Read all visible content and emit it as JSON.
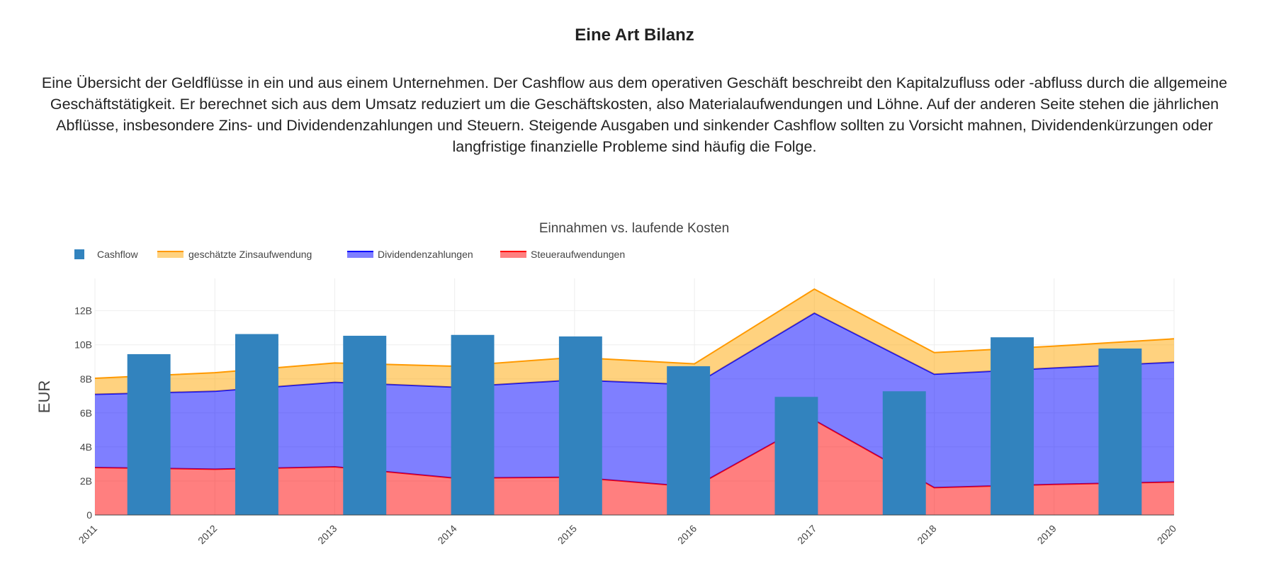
{
  "header": {
    "title": "Eine Art Bilanz",
    "description": "Eine Übersicht der Geldflüsse in ein und aus einem Unternehmen. Der Cashflow aus dem operativen Geschäft beschreibt den Kapitalzufluss oder -abfluss durch die allgemeine Geschäftstätigkeit. Er berechnet sich aus dem Umsatz reduziert um die Geschäftskosten, also Materialaufwendungen und Löhne. Auf der anderen Seite stehen die jährlichen Abflüsse, insbesondere Zins- und Dividendenzahlungen und Steuern. Steigende Ausgaben und sinkender Cashflow sollten zu Vorsicht mahnen, Dividendenkürzungen oder langfristige finanzielle Probleme sind häufig die Folge."
  },
  "chart_data": {
    "type": "bar+stacked-area",
    "title": "Einnahmen vs. laufende Kosten",
    "xlabel": "",
    "ylabel": "EUR",
    "x": [
      "2011",
      "2012",
      "2013",
      "2014",
      "2015",
      "2016",
      "2017",
      "2018",
      "2019",
      "2020"
    ],
    "x_tick_labels": [
      "2011",
      "2012",
      "2013",
      "2014",
      "2015",
      "2016",
      "2017",
      "2018",
      "2019",
      "2020"
    ],
    "y_tick_labels": [
      "0",
      "2B",
      "4B",
      "6B",
      "8B",
      "10B",
      "12B"
    ],
    "y_ticks": [
      0,
      2,
      4,
      6,
      8,
      10,
      12
    ],
    "ylim": [
      0,
      13.9
    ],
    "y_unit": "B EUR",
    "grid": true,
    "legend_placement": "top-left",
    "bars": {
      "name": "Cashflow",
      "color": "#3283BE",
      "values": [
        9.45,
        10.63,
        10.53,
        10.58,
        10.49,
        8.74,
        6.94,
        7.27,
        10.44,
        9.78
      ]
    },
    "stacked_areas": [
      {
        "name": "Steueraufwendungen",
        "line_color": "#FF0000",
        "fill_color": "rgba(255,0,0,0.5)",
        "values": [
          2.79,
          2.69,
          2.83,
          2.17,
          2.22,
          1.65,
          5.57,
          1.61,
          1.8,
          1.94
        ]
      },
      {
        "name": "Dividendenzahlungen",
        "line_color": "#0000FF",
        "fill_color": "rgba(0,0,255,0.5)",
        "values": [
          4.3,
          4.58,
          4.97,
          5.34,
          5.72,
          6.0,
          6.29,
          6.66,
          6.84,
          7.04
        ]
      },
      {
        "name": "geschätzte Zinsaufwendung",
        "line_color": "#FF9900",
        "fill_color": "rgba(255,165,0,0.5)",
        "values": [
          0.94,
          1.09,
          1.13,
          1.23,
          1.32,
          1.23,
          1.41,
          1.27,
          1.28,
          1.37
        ]
      }
    ],
    "legend_order": [
      "Cashflow",
      "geschätzte Zinsaufwendung",
      "Dividendenzahlungen",
      "Steueraufwendungen"
    ]
  }
}
